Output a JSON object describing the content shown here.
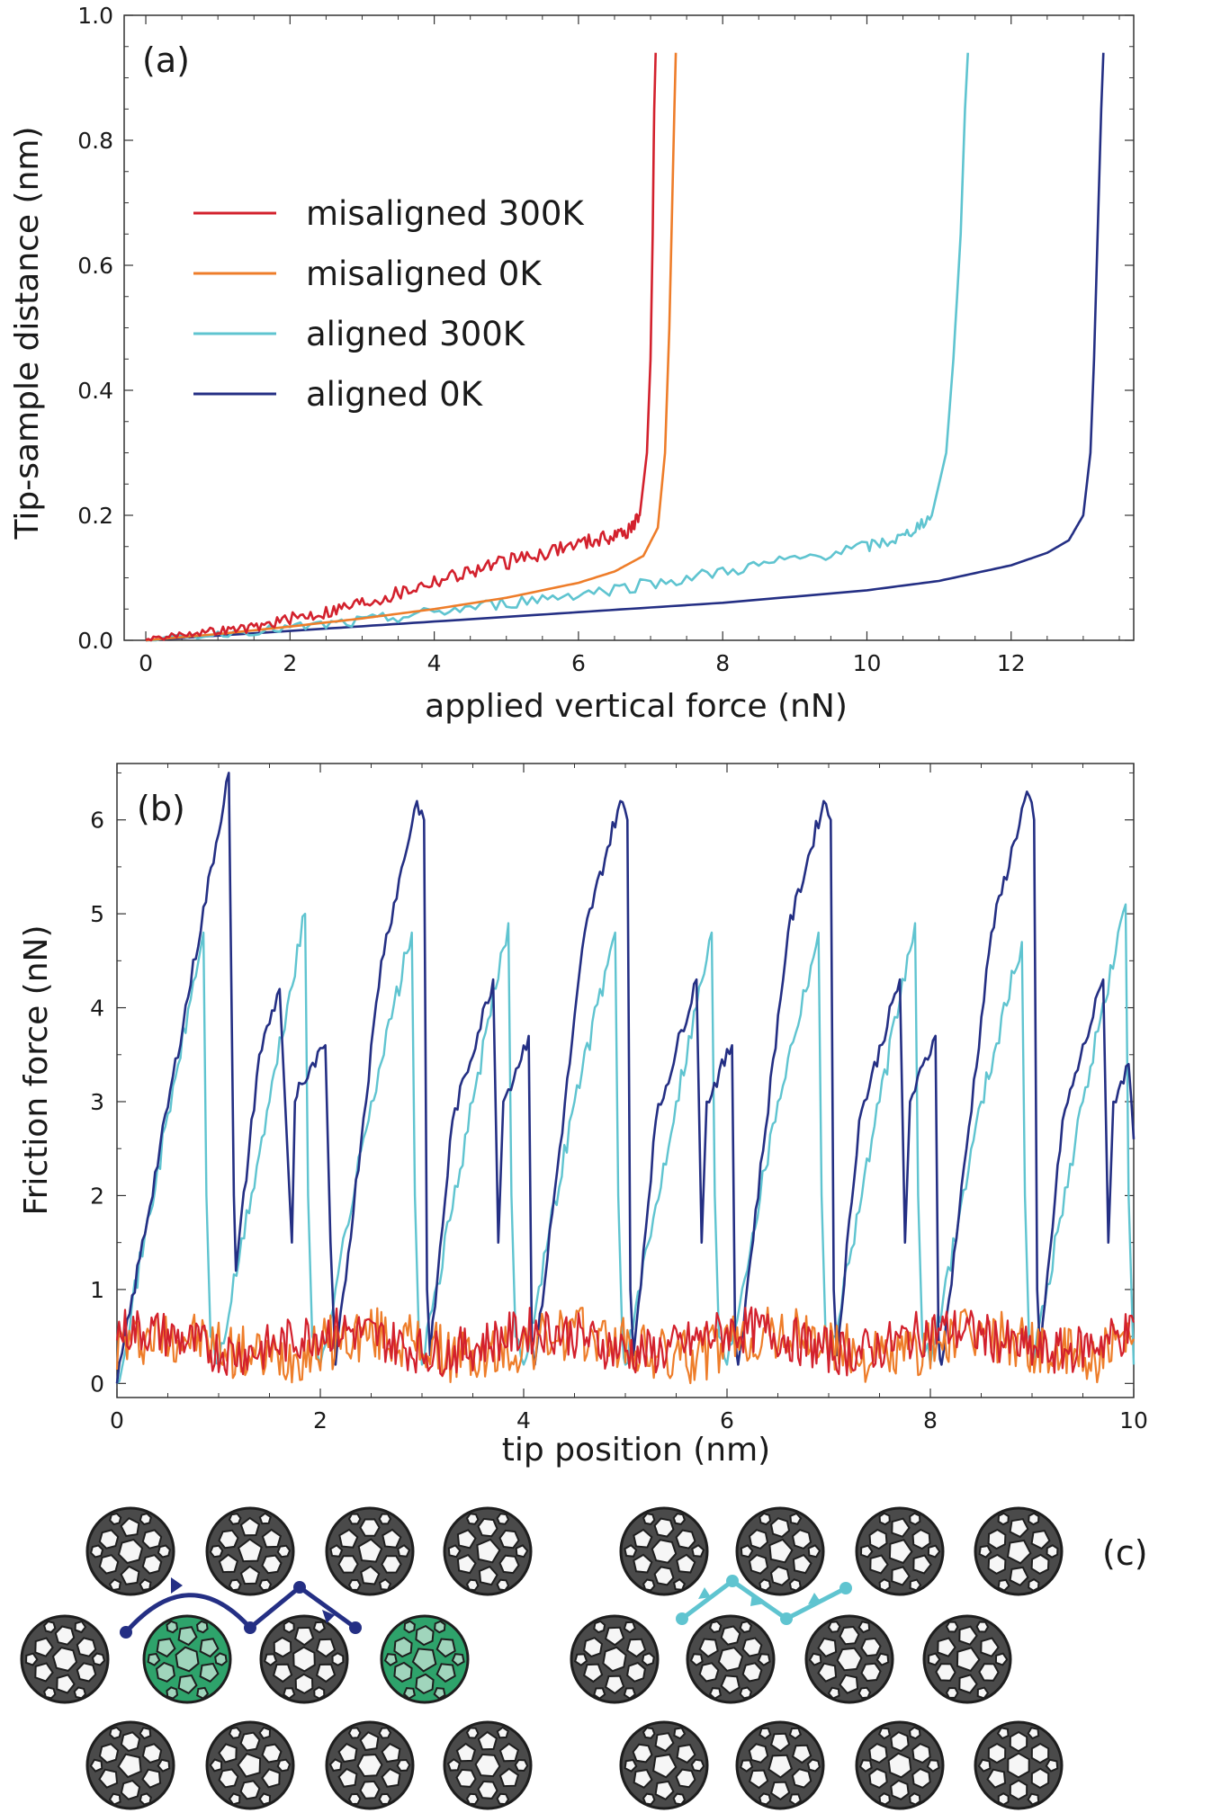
{
  "colors": {
    "misaligned_300K": "#d3212d",
    "misaligned_0K": "#ee7d2a",
    "aligned_300K": "#5fc4d0",
    "aligned_0K": "#242f84",
    "highlight_molecule": "#2ea36b",
    "molecule": "#4a4a4a"
  },
  "chart_data": [
    {
      "type": "line",
      "panel_label": "(a)",
      "title": "",
      "xlabel": "applied vertical force (nN)",
      "ylabel": "Tip-sample distance (nm)",
      "xlim": [
        -0.3,
        13.7
      ],
      "ylim": [
        0.0,
        1.0
      ],
      "xticks": [
        0,
        2,
        4,
        6,
        8,
        10,
        12
      ],
      "yticks": [
        "0.0",
        "0.2",
        "0.4",
        "0.6",
        "0.8",
        "1.0"
      ],
      "legend_position": "upper-left",
      "grid": false,
      "series": [
        {
          "name": "misaligned 300K",
          "key": "misaligned_300K",
          "x": [
            0,
            0.5,
            1,
            1.5,
            2,
            2.5,
            3,
            3.5,
            4,
            4.5,
            5,
            5.5,
            6,
            6.4,
            6.7,
            6.85,
            6.95,
            7.0,
            7.03,
            7.05,
            7.07
          ],
          "y": [
            0.0,
            0.01,
            0.015,
            0.02,
            0.035,
            0.045,
            0.06,
            0.075,
            0.095,
            0.11,
            0.125,
            0.14,
            0.155,
            0.165,
            0.175,
            0.2,
            0.3,
            0.45,
            0.65,
            0.85,
            0.94
          ]
        },
        {
          "name": "misaligned 0K",
          "key": "misaligned_0K",
          "x": [
            0,
            1,
            2,
            3,
            4,
            5,
            6,
            6.5,
            6.9,
            7.1,
            7.2,
            7.26,
            7.3,
            7.33,
            7.35
          ],
          "y": [
            0.0,
            0.01,
            0.022,
            0.035,
            0.05,
            0.068,
            0.092,
            0.11,
            0.135,
            0.18,
            0.3,
            0.5,
            0.7,
            0.85,
            0.94
          ]
        },
        {
          "name": "aligned 300K",
          "key": "aligned_300K",
          "x": [
            0,
            1,
            2,
            3,
            4,
            5,
            6,
            7,
            8,
            9,
            10,
            10.5,
            10.9,
            11.1,
            11.2,
            11.3,
            11.36,
            11.4
          ],
          "y": [
            0.0,
            0.01,
            0.02,
            0.03,
            0.045,
            0.06,
            0.075,
            0.09,
            0.11,
            0.13,
            0.15,
            0.165,
            0.2,
            0.3,
            0.45,
            0.65,
            0.85,
            0.94
          ]
        },
        {
          "name": "aligned 0K",
          "key": "aligned_0K",
          "x": [
            0,
            2,
            4,
            6,
            8,
            10,
            11,
            12,
            12.5,
            12.8,
            13.0,
            13.1,
            13.15,
            13.2,
            13.25,
            13.28
          ],
          "y": [
            0.0,
            0.015,
            0.03,
            0.045,
            0.06,
            0.08,
            0.095,
            0.12,
            0.14,
            0.16,
            0.2,
            0.3,
            0.45,
            0.65,
            0.85,
            0.94
          ]
        }
      ]
    },
    {
      "type": "line",
      "panel_label": "(b)",
      "title": "",
      "xlabel": "tip position (nm)",
      "ylabel": "Friction force (nN)",
      "xlim": [
        0,
        10
      ],
      "ylim": [
        -0.15,
        6.6
      ],
      "xticks": [
        0,
        2,
        4,
        6,
        8,
        10
      ],
      "yticks": [
        0,
        1,
        2,
        3,
        4,
        5,
        6
      ],
      "grid": false,
      "series": [
        {
          "key": "aligned_0K",
          "x": [
            0,
            1.1,
            1.15,
            1.17,
            1.4,
            1.6,
            1.72,
            1.75,
            1.79,
            1.85,
            2.05,
            2.1,
            2.15,
            2.6,
            2.95,
            3.02,
            3.05,
            3.08,
            3.3,
            3.7,
            3.75,
            3.8,
            4.05,
            4.08,
            4.11,
            4.6,
            4.95,
            5.02,
            5.05,
            5.08,
            5.3,
            5.7,
            5.75,
            5.8,
            6.05,
            6.08,
            6.11,
            6.6,
            6.95,
            7.02,
            7.05,
            7.08,
            7.3,
            7.7,
            7.75,
            7.8,
            8.05,
            8.08,
            8.11,
            8.6,
            8.95,
            9.02,
            9.05,
            9.08,
            9.3,
            9.7,
            9.75,
            9.8,
            9.95,
            10.0
          ],
          "y": [
            0.0,
            6.5,
            2.0,
            1.2,
            3.5,
            4.2,
            1.5,
            3.0,
            3.2,
            3.2,
            3.6,
            1.5,
            0.2,
            4.5,
            6.2,
            6.0,
            1.0,
            0.3,
            2.8,
            4.3,
            1.5,
            3.0,
            3.7,
            0.5,
            0.2,
            4.8,
            6.2,
            6.0,
            1.0,
            0.3,
            2.8,
            4.3,
            1.5,
            3.0,
            3.6,
            0.5,
            0.2,
            4.8,
            6.2,
            6.0,
            1.0,
            0.3,
            2.8,
            4.3,
            1.5,
            3.0,
            3.7,
            0.5,
            0.2,
            4.8,
            6.3,
            6.0,
            1.0,
            0.3,
            2.8,
            4.3,
            1.5,
            3.0,
            3.4,
            2.6
          ]
        },
        {
          "key": "aligned_300K",
          "x": [
            0,
            0.85,
            0.88,
            0.92,
            1.0,
            1.5,
            1.85,
            1.88,
            1.92,
            2.0,
            2.5,
            2.9,
            2.93,
            2.97,
            3.0,
            3.5,
            3.85,
            3.88,
            3.92,
            4.0,
            4.5,
            4.9,
            4.93,
            4.97,
            5.0,
            5.5,
            5.85,
            5.88,
            5.92,
            6.0,
            6.5,
            6.9,
            6.93,
            6.97,
            7.0,
            7.5,
            7.85,
            7.88,
            7.92,
            8.0,
            8.5,
            8.9,
            8.93,
            8.97,
            9.0,
            9.5,
            9.92,
            9.95,
            10.0
          ],
          "y": [
            0.0,
            4.8,
            2.0,
            0.5,
            0.2,
            3.0,
            5.0,
            2.0,
            0.5,
            0.2,
            3.0,
            4.8,
            2.0,
            0.5,
            0.2,
            3.0,
            4.9,
            2.0,
            0.5,
            0.2,
            3.0,
            4.8,
            2.0,
            0.5,
            0.2,
            3.0,
            4.8,
            2.0,
            0.5,
            0.2,
            3.0,
            4.8,
            2.0,
            0.5,
            0.2,
            3.0,
            4.9,
            2.0,
            0.5,
            0.2,
            3.0,
            4.7,
            2.0,
            0.5,
            0.2,
            3.0,
            5.1,
            2.0,
            0.2
          ]
        },
        {
          "key": "misaligned_300K",
          "baseline": 0.45,
          "amplitude": 0.25
        },
        {
          "key": "misaligned_0K",
          "baseline": 0.4,
          "amplitude": 0.3
        }
      ]
    }
  ],
  "panel_c": {
    "label": "(c)",
    "left_path_color_key": "aligned_0K",
    "right_path_color_key": "aligned_300K"
  }
}
